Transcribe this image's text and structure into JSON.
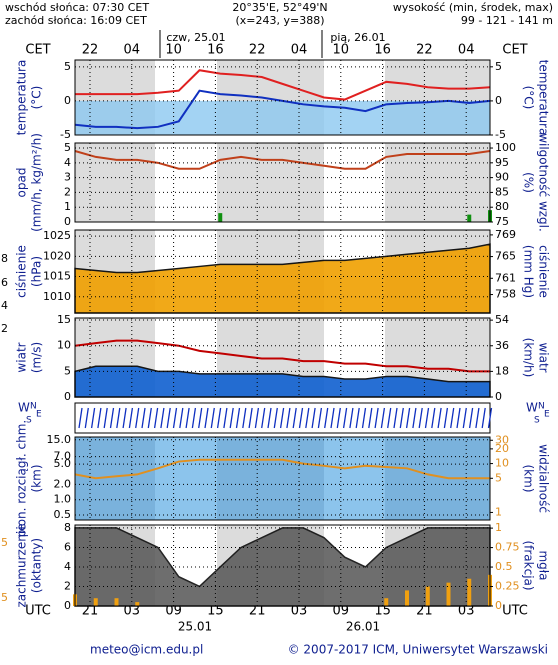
{
  "header": {
    "sunrise": "wschód słońca: 07:30 CET",
    "sunset": "zachód słońca: 16:09 CET",
    "coords": "20°35'E, 52°49'N",
    "grid": "(x=243, y=388)",
    "height_title": "wysokość (min, środek, max)",
    "height_values": "99 - 121 - 141 m"
  },
  "time_axis": {
    "top_label": "CET",
    "top_label_right": "CET",
    "top_hours": [
      "22",
      "04",
      "10",
      "16",
      "22",
      "04",
      "10",
      "16",
      "22",
      "04"
    ],
    "top_dates": [
      "czw, 25.01",
      "pią, 26.01"
    ],
    "bottom_label": "UTC",
    "bottom_label_right": "UTC",
    "bottom_hours": [
      "21",
      "03",
      "09",
      "15",
      "21",
      "03",
      "09",
      "15",
      "21",
      "03"
    ],
    "bottom_dates": [
      "25.01",
      "26.01"
    ]
  },
  "direction_labels": [
    "W",
    "S",
    "N",
    "E",
    "W",
    "S",
    "N",
    "E"
  ],
  "edge_labels": [
    "8",
    "6",
    "4",
    "2",
    "5",
    "5"
  ],
  "chart_data": [
    {
      "type": "line",
      "y_label": [
        "temperatura",
        "(°C)"
      ],
      "y2_label": [
        "(°C)",
        "temperatura"
      ],
      "ylim": [
        -5,
        6
      ],
      "yticks": [
        -5,
        0,
        5
      ],
      "y2lim": [
        -5,
        6
      ],
      "y2ticks": [
        -5,
        0,
        5
      ],
      "series": [
        {
          "color": "#e02020",
          "values": [
            1,
            1,
            1,
            1,
            1.2,
            1.5,
            4.5,
            4,
            3.8,
            3.5,
            2.5,
            1.5,
            0.5,
            0.2,
            1.5,
            2.8,
            2.5,
            2,
            1.8,
            1.8,
            2
          ]
        },
        {
          "color": "#1030c0",
          "values": [
            -3.5,
            -3.8,
            -3.8,
            -4,
            -3.8,
            -3,
            1.5,
            1,
            0.8,
            0.5,
            0,
            -0.5,
            -0.8,
            -1,
            -1.5,
            -0.5,
            -0.3,
            -0.2,
            0,
            -0.3,
            0
          ]
        }
      ]
    },
    {
      "type": "line",
      "y_label": [
        "opad",
        "(mm/h, kg/m²/h)"
      ],
      "y2_label": [
        "(%)",
        "wilgotność wzgl."
      ],
      "ylim": [
        0,
        5.34
      ],
      "yticks": [
        0,
        1,
        2,
        3,
        4,
        5
      ],
      "y2lim": [
        75,
        101.7
      ],
      "y2ticks": [
        75,
        80,
        85,
        90,
        95,
        100
      ],
      "series": [
        {
          "color": "#c0401a",
          "axis": "y2",
          "values": [
            99,
            97,
            96,
            96,
            95,
            93,
            93,
            96,
            97,
            96,
            96,
            95,
            94,
            93,
            93,
            97,
            98,
            98,
            98,
            98,
            99
          ]
        },
        {
          "color": "#109010",
          "bars": true,
          "values": [
            0,
            0,
            0,
            0,
            0,
            0,
            0,
            0.6,
            0,
            0,
            0,
            0,
            0,
            0,
            0,
            0,
            0,
            0,
            0,
            0.5,
            0.8
          ]
        }
      ]
    },
    {
      "type": "area",
      "y_label": [
        "ciśnienie",
        "(hPa)"
      ],
      "y2_label": [
        "(mm Hg)",
        "ciśnienie"
      ],
      "ylim": [
        1006,
        1026.5
      ],
      "yticks": [
        1010,
        1015,
        1020,
        1025
      ],
      "y2lim": [
        754.6,
        769.9
      ],
      "y2ticks": [
        758,
        761,
        765,
        769
      ],
      "series": [
        {
          "color": "#f0a000",
          "values": [
            1017,
            1016.5,
            1016,
            1016,
            1016.5,
            1017,
            1017.5,
            1018,
            1018,
            1018,
            1018,
            1018.5,
            1019,
            1019,
            1019.5,
            1020,
            1020.5,
            1021,
            1021.5,
            1022,
            1023
          ]
        }
      ]
    },
    {
      "type": "area",
      "y_label": [
        "wiatr",
        "(m/s)"
      ],
      "y2_label": [
        "(km/h)",
        "wiatr"
      ],
      "ylim": [
        0,
        15.4
      ],
      "yticks": [
        0,
        5,
        10,
        15
      ],
      "y2lim": [
        0,
        55.5
      ],
      "y2ticks": [
        0,
        18,
        36,
        54
      ],
      "series": [
        {
          "color": "#1060d0",
          "values": [
            5,
            6,
            6,
            6,
            5,
            5,
            4.5,
            4.5,
            4.5,
            4.5,
            4.5,
            4,
            4,
            3.5,
            3.5,
            4,
            4,
            3.5,
            3,
            3,
            3
          ]
        },
        {
          "color": "#c00000",
          "line": true,
          "values": [
            10,
            10.5,
            11,
            11,
            10.5,
            10,
            9,
            8.5,
            8,
            7.5,
            7.5,
            7,
            7,
            6.5,
            6.5,
            6,
            6,
            5.5,
            5.5,
            5,
            5
          ]
        }
      ]
    },
    {
      "type": "line",
      "log": true,
      "y_label": [
        "pion. rozciągł. chm.",
        "(km)"
      ],
      "y2_label": [
        "(km)",
        "widzialność"
      ],
      "ylim": [
        0.4,
        17
      ],
      "yticks": [
        {
          "value": 0.5,
          "label": "0.5"
        },
        {
          "value": 1,
          "label": "1.0"
        },
        {
          "value": 2,
          "label": "2.0"
        },
        {
          "value": 5,
          "label": "5.0"
        },
        {
          "value": 7,
          "label": "7.0"
        },
        {
          "value": 15,
          "label": "15.0"
        }
      ],
      "y2lim": [
        0.7,
        35
      ],
      "y2ticks": [
        1,
        5,
        10,
        20,
        30
      ],
      "series": [
        {
          "color": "#e09020",
          "axis": "y2",
          "values": [
            6,
            5,
            5.5,
            6,
            8,
            11,
            12,
            12,
            12,
            12,
            12,
            10,
            9,
            8,
            9,
            8.5,
            8,
            6,
            5,
            5,
            5
          ]
        }
      ]
    },
    {
      "type": "area",
      "y_label": [
        "zachmurzenie",
        "(oktanty)"
      ],
      "y2_label": [
        "(frakcja)",
        "mgła"
      ],
      "ylim": [
        0,
        8.3
      ],
      "yticks": [
        0,
        2,
        4,
        6,
        8
      ],
      "y2lim": [
        0,
        1.04
      ],
      "y2ticks": [
        0,
        0.25,
        0.5,
        0.75,
        1
      ],
      "series": [
        {
          "color": "#555555",
          "values": [
            8,
            8,
            8,
            7,
            6,
            3,
            2,
            4,
            6,
            7,
            8,
            8,
            7,
            5,
            4,
            6,
            7,
            8,
            8,
            8,
            8
          ]
        },
        {
          "color": "#f0a010",
          "axis": "y2",
          "bars": true,
          "values": [
            0.15,
            0.1,
            0.1,
            0.05,
            0,
            0,
            0,
            0,
            0,
            0,
            0,
            0,
            0,
            0,
            0,
            0.1,
            0.2,
            0.25,
            0.3,
            0.35,
            0.4
          ]
        }
      ]
    }
  ],
  "footer": {
    "email": "meteo@icm.edu.pl",
    "copyright": "© 2007-2017 ICM, Uniwersytet Warszawski"
  }
}
